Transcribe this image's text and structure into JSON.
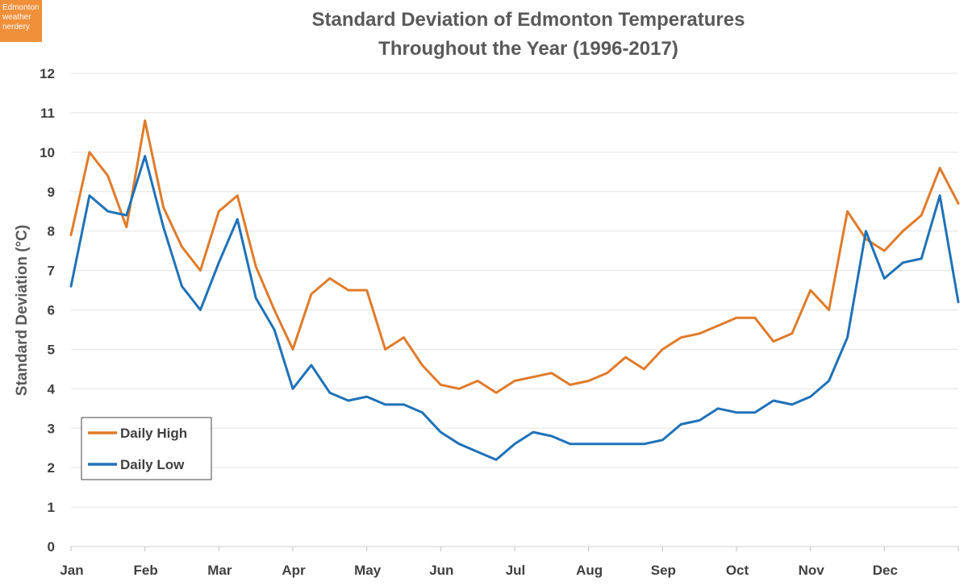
{
  "badge": {
    "lines": [
      "Edmonton",
      "weather",
      "nerdery"
    ]
  },
  "chart_data": {
    "type": "line",
    "title": [
      "Standard Deviation of Edmonton Temperatures",
      "Throughout the Year (1996-2017)"
    ],
    "xlabel": "",
    "ylabel": "Standard Deviation (°C)",
    "ylim": [
      0,
      12
    ],
    "yticks": [
      0,
      1,
      2,
      3,
      4,
      5,
      6,
      7,
      8,
      9,
      10,
      11,
      12
    ],
    "grid": true,
    "legend_position": "bottom-left",
    "x_unit": "month",
    "month_labels": [
      "Jan",
      "Feb",
      "Mar",
      "Apr",
      "May",
      "Jun",
      "Jul",
      "Aug",
      "Sep",
      "Oct",
      "Nov",
      "Dec"
    ],
    "x": [
      0,
      0.25,
      0.5,
      0.75,
      1,
      1.25,
      1.5,
      1.75,
      2,
      2.25,
      2.5,
      2.75,
      3,
      3.25,
      3.5,
      3.75,
      4,
      4.25,
      4.5,
      4.75,
      5,
      5.25,
      5.5,
      5.75,
      6,
      6.25,
      6.5,
      6.75,
      7,
      7.25,
      7.5,
      7.75,
      8,
      8.25,
      8.5,
      8.75,
      9,
      9.25,
      9.5,
      9.75,
      10,
      10.25,
      10.5,
      10.75,
      11,
      11.25,
      11.5,
      11.75,
      12
    ],
    "series": [
      {
        "name": "Daily High",
        "color": "#e07b2a",
        "values": [
          7.9,
          10.0,
          9.4,
          8.1,
          10.8,
          8.6,
          7.6,
          7.0,
          8.5,
          8.9,
          7.1,
          6.0,
          5.0,
          6.4,
          6.8,
          6.5,
          6.5,
          5.0,
          5.3,
          4.6,
          4.1,
          4.0,
          4.2,
          3.9,
          4.2,
          4.3,
          4.4,
          4.1,
          4.2,
          4.4,
          4.8,
          4.5,
          5.0,
          5.3,
          5.4,
          5.6,
          5.8,
          5.8,
          5.2,
          5.4,
          6.5,
          6.0,
          8.5,
          7.8,
          7.5,
          8.0,
          8.4,
          9.6,
          8.7
        ]
      },
      {
        "name": "Daily Low",
        "color": "#1f72b8",
        "values": [
          6.6,
          8.9,
          8.5,
          8.4,
          9.9,
          8.1,
          6.6,
          6.0,
          7.2,
          8.3,
          6.3,
          5.5,
          4.0,
          4.6,
          3.9,
          3.7,
          3.8,
          3.6,
          3.6,
          3.4,
          2.9,
          2.6,
          2.4,
          2.2,
          2.6,
          2.9,
          2.8,
          2.6,
          2.6,
          2.6,
          2.6,
          2.6,
          2.7,
          3.1,
          3.2,
          3.5,
          3.4,
          3.4,
          3.7,
          3.6,
          3.8,
          4.2,
          5.3,
          8.0,
          6.8,
          7.2,
          7.3,
          8.9,
          6.2
        ]
      }
    ]
  }
}
